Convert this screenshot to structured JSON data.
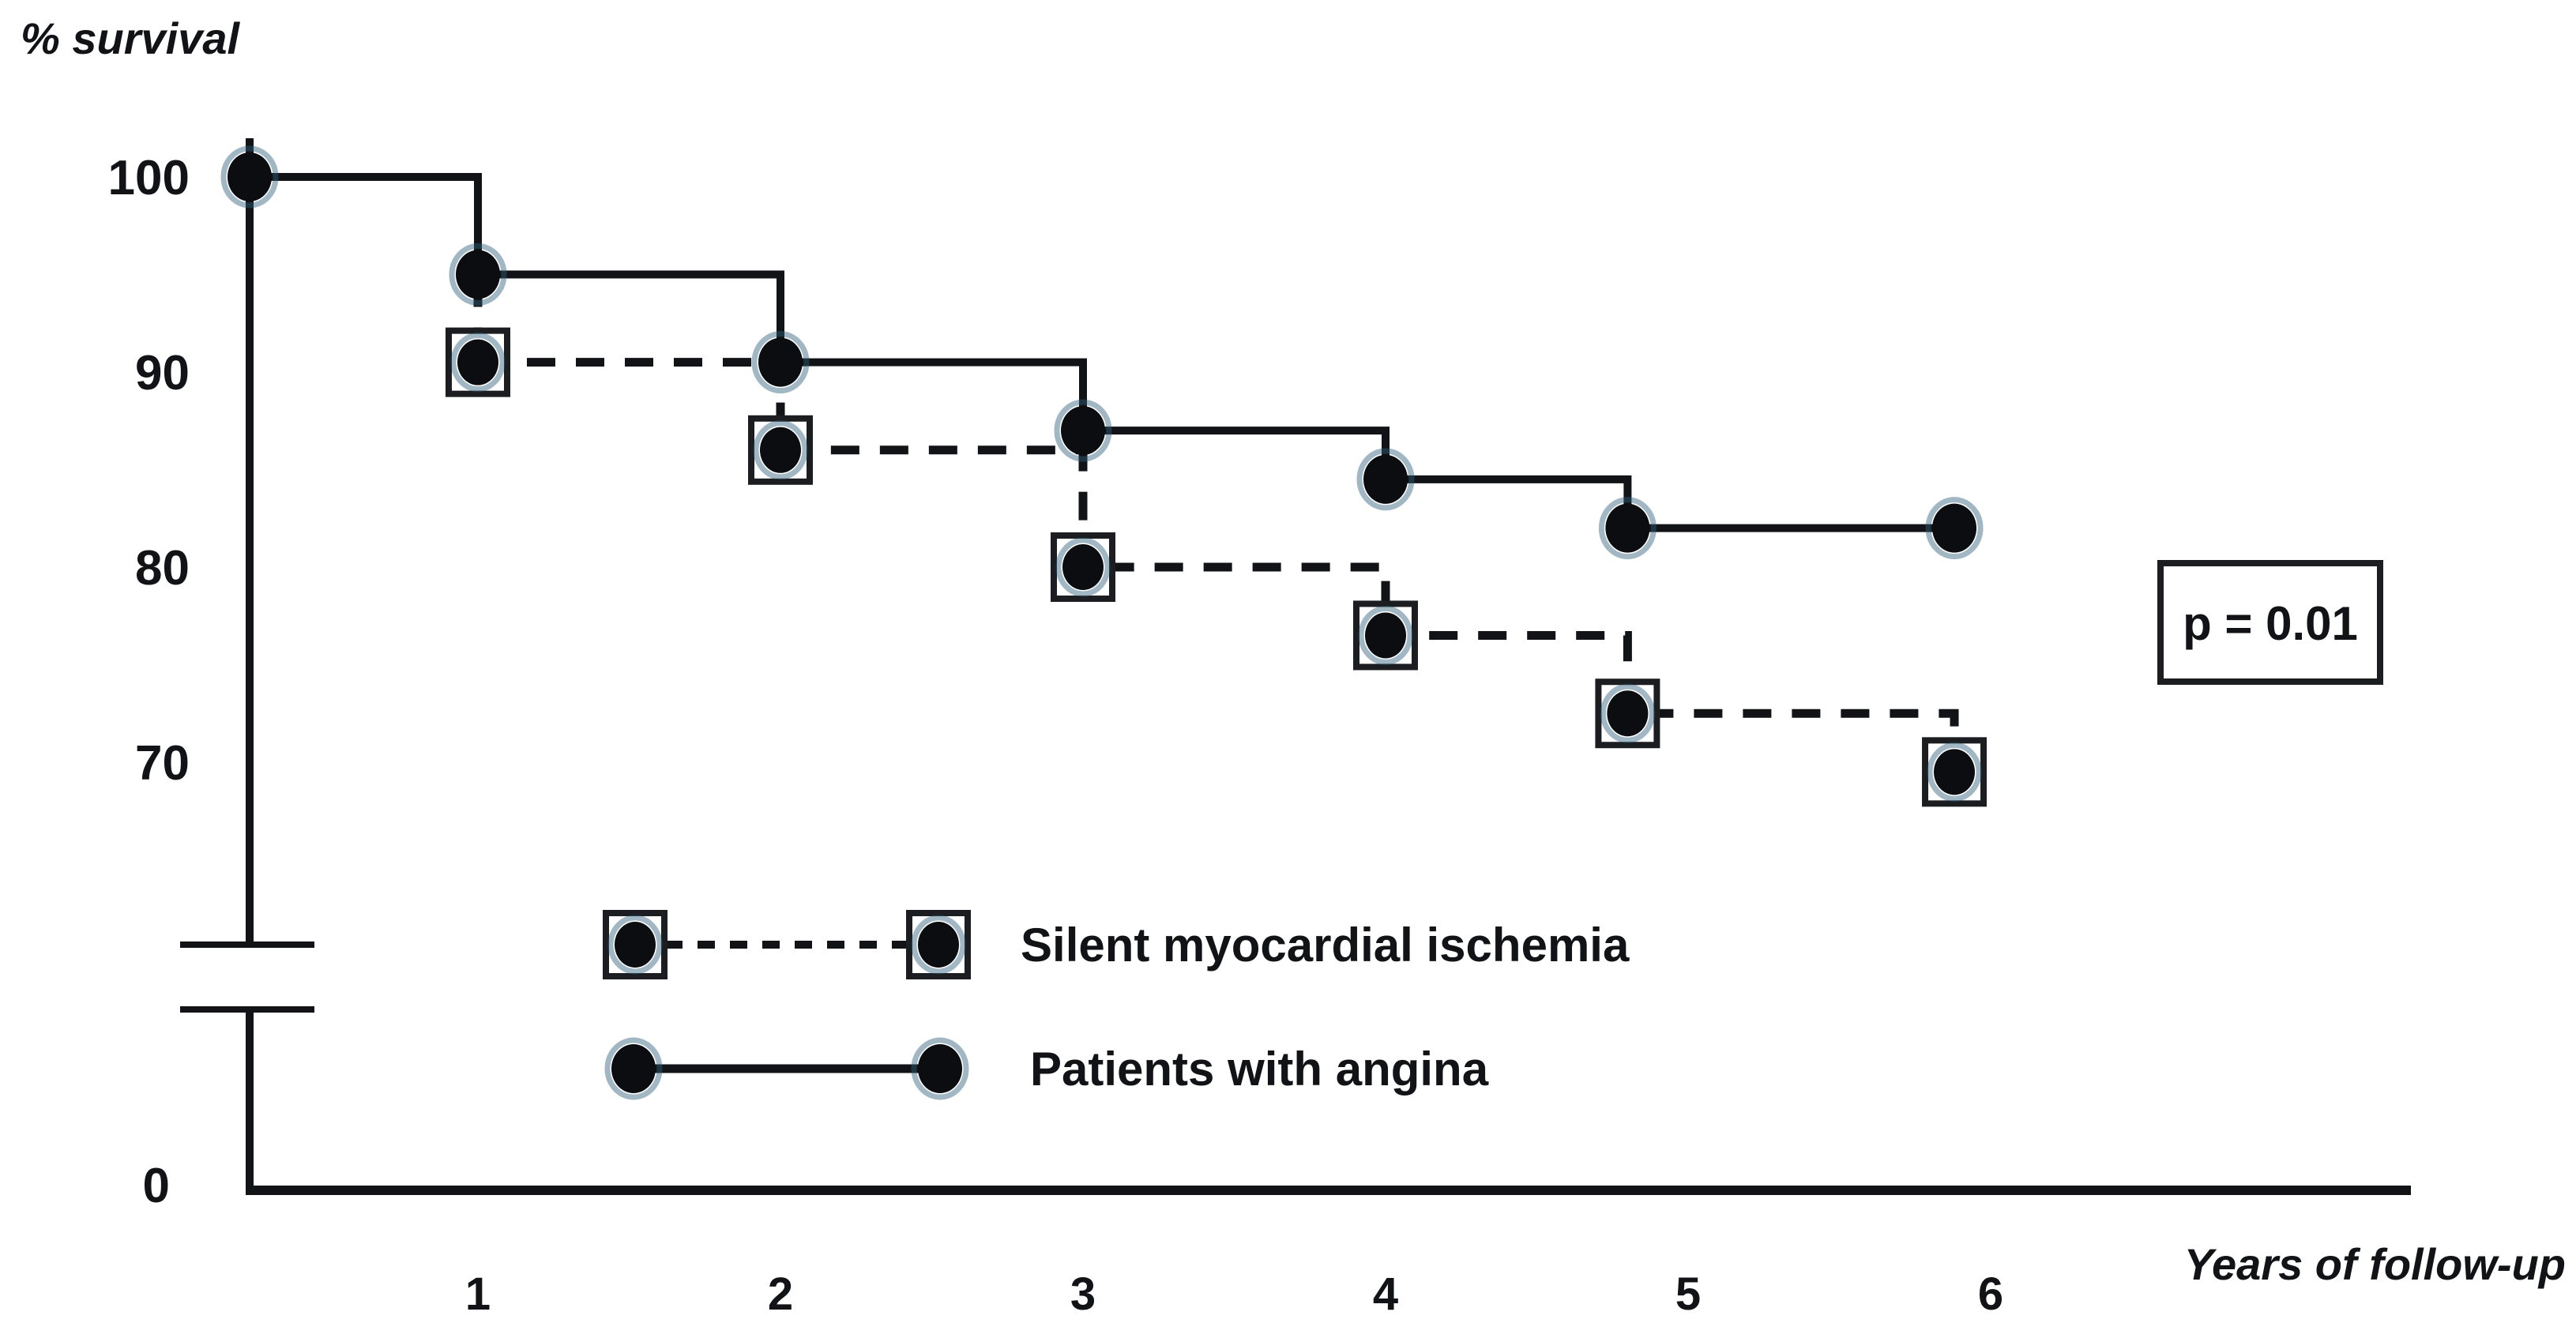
{
  "chart_data": {
    "type": "line",
    "subtype": "kaplan-meier-step",
    "title": "",
    "ylabel": "% survival",
    "xlabel": "Years of follow-up",
    "y_ticks": [
      100,
      90,
      80,
      70
    ],
    "y_origin_label": "0",
    "x_ticks": [
      1,
      2,
      3,
      4,
      5,
      6
    ],
    "ylim": [
      0,
      100
    ],
    "visible_value_range": [
      65,
      100
    ],
    "axis_break": true,
    "grid": false,
    "legend_position": "bottom-center-inside",
    "annotation": "p = 0.01",
    "colors": {
      "ink": "#121316",
      "marker_fill": "#0b0d10",
      "marker_halo": "#2e5f7d",
      "background": "#ffffff"
    },
    "series": [
      {
        "name": "Silent myocardial ischemia",
        "style": "dashed",
        "marker": "boxed-dot",
        "x": [
          1,
          2,
          3,
          4,
          4.8,
          5.88
        ],
        "values": [
          90.5,
          86,
          80,
          76.5,
          72.5,
          69.5
        ],
        "start_stub_from": 94.8
      },
      {
        "name": "Patients with angina",
        "style": "solid",
        "marker": "dot",
        "x": [
          0,
          1,
          2,
          3,
          4,
          4.8,
          5.88
        ],
        "values": [
          100,
          95,
          90.5,
          87,
          84.5,
          82,
          82
        ]
      }
    ]
  }
}
